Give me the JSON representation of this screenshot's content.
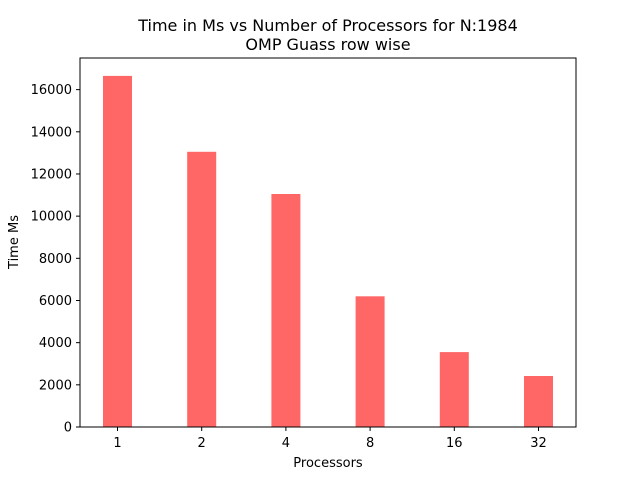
{
  "chart_data": {
    "type": "bar",
    "title": "Time in Ms vs Number of Processors for N:1984",
    "subtitle": "OMP Guass row wise",
    "xlabel": "Processors",
    "ylabel": "Time Ms",
    "categories": [
      "1",
      "2",
      "4",
      "8",
      "16",
      "32"
    ],
    "values": [
      16650,
      13050,
      11050,
      6200,
      3550,
      2420
    ],
    "ylim": [
      0,
      17500
    ],
    "yticks": [
      0,
      2000,
      4000,
      6000,
      8000,
      10000,
      12000,
      14000,
      16000
    ],
    "ytick_labels": [
      "0",
      "2000",
      "4000",
      "6000",
      "8000",
      "10000",
      "12000",
      "14000",
      "16000"
    ],
    "bar_color": "#ff6666",
    "grid": false
  }
}
